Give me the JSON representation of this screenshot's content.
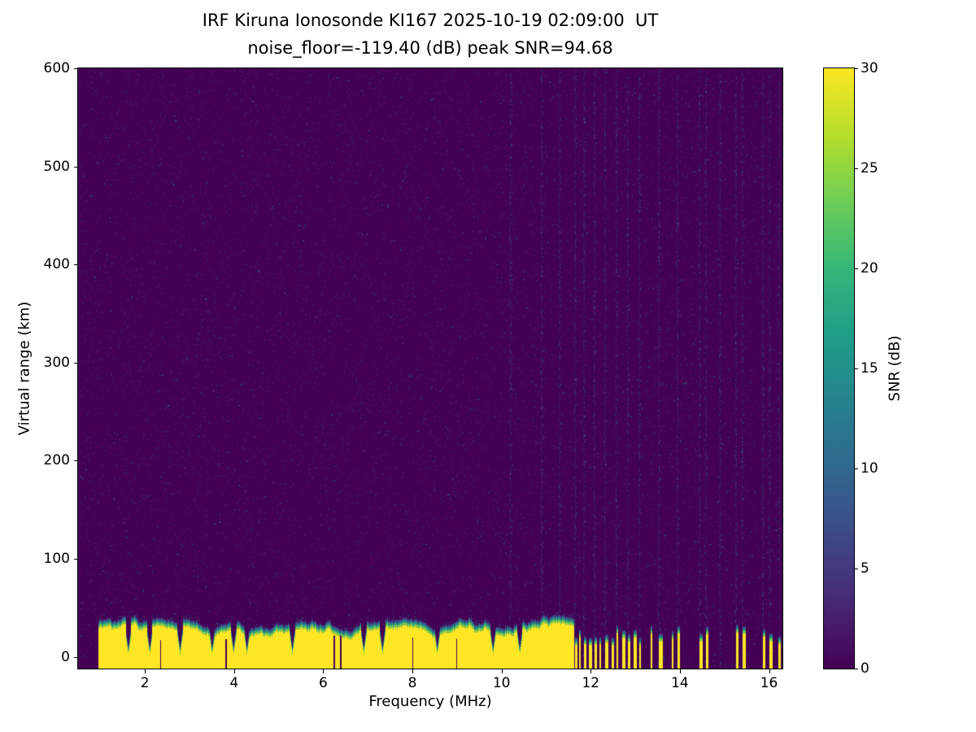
{
  "chart_data": {
    "type": "heatmap",
    "title": "IRF Kiruna Ionosonde KI167 2025-10-19 02:09:00  UT",
    "subtitle": "noise_floor=-119.40 (dB) peak SNR=94.68",
    "station": "IRF Kiruna Ionosonde KI167",
    "timestamp_ut": "2025-10-19 02:09:00",
    "noise_floor_db": -119.4,
    "peak_snr_db": 94.68,
    "xlabel": "Frequency (MHz)",
    "ylabel": "Virtual range (km)",
    "xlim": [
      0.5,
      16.3
    ],
    "ylim": [
      -12,
      600
    ],
    "xticks": [
      2,
      4,
      6,
      8,
      10,
      12,
      14,
      16
    ],
    "yticks": [
      0,
      100,
      200,
      300,
      400,
      500,
      600
    ],
    "grid": false,
    "colorbar": {
      "label": "SNR (dB)",
      "min": 0,
      "max": 30,
      "ticks": [
        0,
        5,
        10,
        15,
        20,
        25,
        30
      ],
      "colormap": "viridis",
      "stops": [
        "#440154",
        "#482878",
        "#3e4989",
        "#31688e",
        "#26828e",
        "#1f9e89",
        "#35b779",
        "#6ece58",
        "#b5de2b",
        "#fde725"
      ]
    },
    "colors": {
      "background": "#440154",
      "peak": "#fde725",
      "fringe": [
        "#414487",
        "#2a788e",
        "#22a884",
        "#7ad151"
      ],
      "speckle": [
        "#46327e",
        "#3f4d8a",
        "#2d6e8e",
        "#25a584"
      ]
    },
    "echo_band": {
      "freq_start_mhz": 0.95,
      "freq_end_mhz": 11.62,
      "top_km_min": 20,
      "top_km_max": 46,
      "dips_mhz": [
        1.62,
        2.1,
        2.78,
        3.5,
        3.98,
        4.28,
        5.3,
        6.9,
        7.32,
        8.55,
        9.8,
        10.4
      ],
      "slits_mhz": [
        2.35,
        3.8,
        6.23,
        6.38,
        8.0,
        8.98
      ]
    },
    "stripes": [
      [
        11.65,
        3
      ],
      [
        11.74,
        2
      ],
      [
        11.85,
        3
      ],
      [
        11.96,
        4
      ],
      [
        12.08,
        3
      ],
      [
        12.19,
        2
      ],
      [
        12.32,
        4
      ],
      [
        12.47,
        3
      ],
      [
        12.58,
        2
      ],
      [
        12.7,
        4
      ],
      [
        12.83,
        3
      ],
      [
        12.96,
        4
      ],
      [
        13.09,
        2
      ],
      [
        13.34,
        2
      ],
      [
        13.53,
        5
      ],
      [
        13.82,
        2
      ],
      [
        13.94,
        3
      ],
      [
        14.44,
        4
      ],
      [
        14.58,
        3
      ],
      [
        15.26,
        3
      ],
      [
        15.4,
        4
      ],
      [
        15.86,
        3
      ],
      [
        16.01,
        4
      ],
      [
        16.21,
        3
      ]
    ],
    "rfi_columns_mhz": [
      10.2,
      10.9,
      11.3,
      11.65,
      11.85,
      12.08,
      12.32,
      12.58,
      12.83,
      13.09,
      13.53,
      13.94,
      14.44,
      14.58,
      14.9,
      15.26,
      15.4,
      15.86,
      16.01,
      16.21
    ]
  }
}
